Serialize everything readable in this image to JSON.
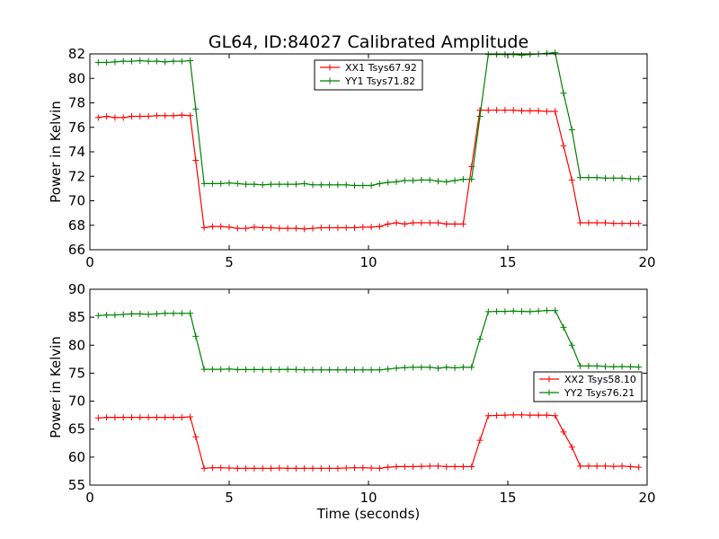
{
  "title": "GL64, ID:84027 Calibrated Amplitude",
  "chart_data": [
    {
      "type": "line",
      "xlabel": "",
      "ylabel": "Power in Kelvin",
      "xlim": [
        0,
        20
      ],
      "ylim": [
        66,
        82
      ],
      "xticks": [
        0,
        5,
        10,
        15,
        20
      ],
      "yticks": [
        66,
        68,
        70,
        72,
        74,
        76,
        78,
        80,
        82
      ],
      "legend_placement": "upper-center",
      "x": [
        0.3,
        0.6,
        0.9,
        1.2,
        1.5,
        1.8,
        2.1,
        2.4,
        2.7,
        3.0,
        3.3,
        3.6,
        3.8,
        4.1,
        4.4,
        4.7,
        5.0,
        5.3,
        5.6,
        5.9,
        6.2,
        6.5,
        6.8,
        7.1,
        7.4,
        7.7,
        8.0,
        8.3,
        8.6,
        8.9,
        9.2,
        9.5,
        9.8,
        10.1,
        10.4,
        10.7,
        11.0,
        11.3,
        11.6,
        11.9,
        12.2,
        12.5,
        12.8,
        13.1,
        13.4,
        13.7,
        14.0,
        14.3,
        14.6,
        14.9,
        15.2,
        15.5,
        15.8,
        16.1,
        16.4,
        16.7,
        17.0,
        17.3,
        17.6,
        17.9,
        18.2,
        18.5,
        18.8,
        19.1,
        19.4,
        19.7
      ],
      "series": [
        {
          "name": "XX1 Tsys67.92",
          "color": "#ff0000",
          "values": [
            76.8,
            76.9,
            76.8,
            76.8,
            76.9,
            76.9,
            76.9,
            76.95,
            76.95,
            76.95,
            77.0,
            76.95,
            73.3,
            67.8,
            67.9,
            67.9,
            67.85,
            67.75,
            67.75,
            67.85,
            67.8,
            67.8,
            67.75,
            67.75,
            67.75,
            67.7,
            67.75,
            67.8,
            67.8,
            67.8,
            67.8,
            67.8,
            67.85,
            67.85,
            67.9,
            68.1,
            68.2,
            68.1,
            68.2,
            68.2,
            68.2,
            68.2,
            68.1,
            68.1,
            68.1,
            72.8,
            77.4,
            77.4,
            77.4,
            77.4,
            77.4,
            77.35,
            77.35,
            77.35,
            77.3,
            77.3,
            74.5,
            71.7,
            68.2,
            68.2,
            68.2,
            68.2,
            68.15,
            68.15,
            68.15,
            68.15
          ]
        },
        {
          "name": "YY1 Tsys71.82",
          "color": "#008000",
          "values": [
            81.3,
            81.3,
            81.35,
            81.4,
            81.4,
            81.45,
            81.4,
            81.4,
            81.35,
            81.4,
            81.4,
            81.45,
            77.5,
            71.4,
            71.4,
            71.4,
            71.45,
            71.4,
            71.35,
            71.35,
            71.3,
            71.35,
            71.35,
            71.35,
            71.35,
            71.4,
            71.3,
            71.3,
            71.3,
            71.3,
            71.3,
            71.25,
            71.25,
            71.25,
            71.4,
            71.5,
            71.55,
            71.65,
            71.65,
            71.7,
            71.7,
            71.6,
            71.55,
            71.65,
            71.75,
            71.75,
            76.9,
            81.95,
            81.95,
            81.95,
            81.95,
            81.9,
            81.95,
            82.0,
            82.05,
            82.1,
            78.8,
            75.8,
            71.9,
            71.9,
            71.9,
            71.85,
            71.85,
            71.85,
            71.8,
            71.8
          ]
        }
      ]
    },
    {
      "type": "line",
      "xlabel": "Time (seconds)",
      "ylabel": "Power in Kelvin",
      "xlim": [
        0,
        20
      ],
      "ylim": [
        55,
        90
      ],
      "xticks": [
        0,
        5,
        10,
        15,
        20
      ],
      "yticks": [
        55,
        60,
        65,
        70,
        75,
        80,
        85,
        90
      ],
      "legend_placement": "center-right",
      "x": [
        0.3,
        0.6,
        0.9,
        1.2,
        1.5,
        1.8,
        2.1,
        2.4,
        2.7,
        3.0,
        3.3,
        3.6,
        3.8,
        4.1,
        4.4,
        4.7,
        5.0,
        5.3,
        5.6,
        5.9,
        6.2,
        6.5,
        6.8,
        7.1,
        7.4,
        7.7,
        8.0,
        8.3,
        8.6,
        8.9,
        9.2,
        9.5,
        9.8,
        10.1,
        10.4,
        10.7,
        11.0,
        11.3,
        11.6,
        11.9,
        12.2,
        12.5,
        12.8,
        13.1,
        13.4,
        13.7,
        14.0,
        14.3,
        14.6,
        14.9,
        15.2,
        15.5,
        15.8,
        16.1,
        16.4,
        16.7,
        17.0,
        17.3,
        17.6,
        17.9,
        18.2,
        18.5,
        18.8,
        19.1,
        19.4,
        19.7
      ],
      "series": [
        {
          "name": "XX2 Tsys58.10",
          "color": "#ff0000",
          "values": [
            67.0,
            67.1,
            67.1,
            67.1,
            67.1,
            67.1,
            67.1,
            67.1,
            67.1,
            67.1,
            67.1,
            67.2,
            63.6,
            58.0,
            58.1,
            58.1,
            58.05,
            58.0,
            58.0,
            58.0,
            58.0,
            58.0,
            58.05,
            58.0,
            58.0,
            58.0,
            58.0,
            58.0,
            58.0,
            58.0,
            58.05,
            58.1,
            58.1,
            58.05,
            58.0,
            58.2,
            58.3,
            58.3,
            58.3,
            58.35,
            58.4,
            58.4,
            58.3,
            58.3,
            58.3,
            58.3,
            63.0,
            67.4,
            67.45,
            67.5,
            67.55,
            67.55,
            67.5,
            67.5,
            67.5,
            67.4,
            64.5,
            61.8,
            58.4,
            58.4,
            58.4,
            58.4,
            58.35,
            58.4,
            58.3,
            58.2
          ]
        },
        {
          "name": "YY2 Tsys76.21",
          "color": "#008000",
          "values": [
            85.3,
            85.4,
            85.4,
            85.5,
            85.6,
            85.6,
            85.5,
            85.6,
            85.7,
            85.7,
            85.7,
            85.7,
            81.6,
            75.7,
            75.7,
            75.7,
            75.75,
            75.65,
            75.65,
            75.65,
            75.65,
            75.65,
            75.65,
            75.7,
            75.65,
            75.6,
            75.6,
            75.6,
            75.6,
            75.6,
            75.6,
            75.6,
            75.6,
            75.6,
            75.6,
            75.75,
            75.9,
            76.0,
            76.05,
            76.05,
            76.05,
            75.9,
            76.05,
            75.95,
            76.05,
            76.05,
            81.1,
            86.0,
            86.05,
            86.05,
            86.1,
            86.05,
            86.0,
            86.1,
            86.2,
            86.2,
            83.2,
            80.0,
            76.3,
            76.3,
            76.3,
            76.2,
            76.15,
            76.2,
            76.15,
            76.1
          ]
        }
      ]
    }
  ]
}
